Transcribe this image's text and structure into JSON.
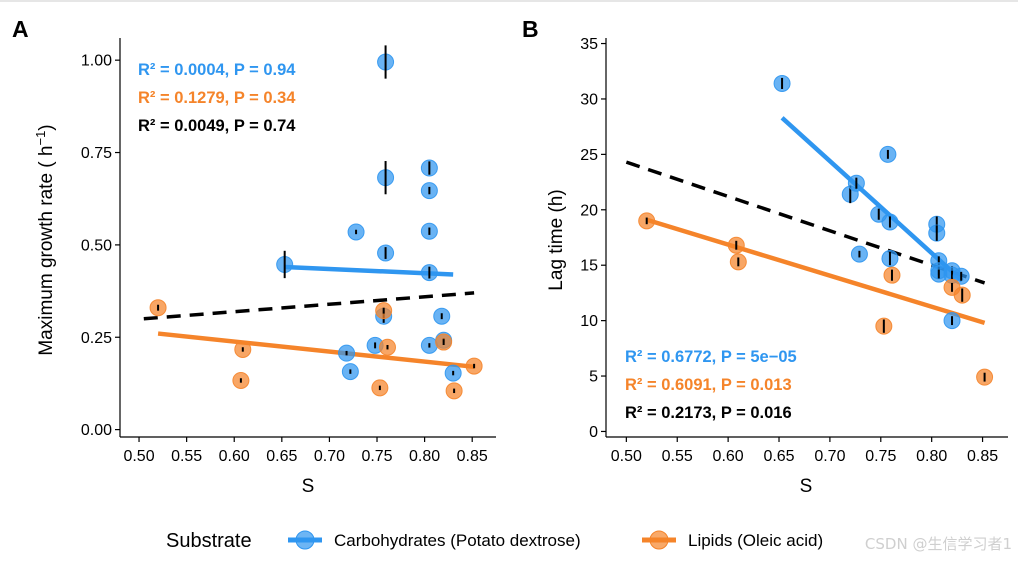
{
  "colors": {
    "carb": "#2f96f0",
    "lipid": "#f5842a",
    "overall": "#000000"
  },
  "legend": {
    "title": "Substrate",
    "items": [
      {
        "label": "Carbohydrates (Potato dextrose)",
        "series": "carb"
      },
      {
        "label": "Lipids (Oleic acid)",
        "series": "lipid"
      }
    ]
  },
  "watermark": "CSDN @生信学习者1",
  "chart_data": [
    {
      "type": "scatter",
      "panel": "A",
      "xlabel": "S",
      "ylabel_main": "Maximum growth rate ( h",
      "ylabel_sup": "−1",
      "ylabel_end": ")",
      "xlim": [
        0.48,
        0.875
      ],
      "ylim": [
        -0.02,
        1.06
      ],
      "xticks": [
        0.5,
        0.55,
        0.6,
        0.65,
        0.7,
        0.75,
        0.8,
        0.85
      ],
      "xtick_labels": [
        "0.50",
        "0.55",
        "0.60",
        "0.65",
        "0.70",
        "0.75",
        "0.80",
        "0.85"
      ],
      "yticks": [
        0,
        0.25,
        0.5,
        0.75,
        1.0
      ],
      "ytick_labels": [
        "0.00",
        "0.25",
        "0.50",
        "0.75",
        "1.00"
      ],
      "series": [
        {
          "name": "carb",
          "points": [
            {
              "x": 0.653,
              "y": 0.447,
              "err": 0.037
            },
            {
              "x": 0.718,
              "y": 0.207,
              "err": 0.006
            },
            {
              "x": 0.722,
              "y": 0.157,
              "err": 0.006
            },
            {
              "x": 0.728,
              "y": 0.535,
              "err": 0.006
            },
            {
              "x": 0.748,
              "y": 0.228,
              "err": 0.008
            },
            {
              "x": 0.757,
              "y": 0.307,
              "err": 0.018
            },
            {
              "x": 0.759,
              "y": 0.995,
              "err": 0.045
            },
            {
              "x": 0.759,
              "y": 0.682,
              "err": 0.045
            },
            {
              "x": 0.759,
              "y": 0.478,
              "err": 0.016
            },
            {
              "x": 0.805,
              "y": 0.708,
              "err": 0.018
            },
            {
              "x": 0.805,
              "y": 0.647,
              "err": 0.01
            },
            {
              "x": 0.805,
              "y": 0.537,
              "err": 0.01
            },
            {
              "x": 0.805,
              "y": 0.425,
              "err": 0.016
            },
            {
              "x": 0.805,
              "y": 0.228,
              "err": 0.006
            },
            {
              "x": 0.818,
              "y": 0.307,
              "err": 0.008
            },
            {
              "x": 0.82,
              "y": 0.242,
              "err": 0.006
            },
            {
              "x": 0.83,
              "y": 0.153,
              "err": 0.006
            }
          ]
        },
        {
          "name": "lipid",
          "points": [
            {
              "x": 0.52,
              "y": 0.33,
              "err": 0.008
            },
            {
              "x": 0.607,
              "y": 0.133,
              "err": 0.006
            },
            {
              "x": 0.609,
              "y": 0.217,
              "err": 0.006
            },
            {
              "x": 0.753,
              "y": 0.113,
              "err": 0.006
            },
            {
              "x": 0.757,
              "y": 0.322,
              "err": 0.008
            },
            {
              "x": 0.761,
              "y": 0.223,
              "err": 0.006
            },
            {
              "x": 0.82,
              "y": 0.237,
              "err": 0.008
            },
            {
              "x": 0.831,
              "y": 0.105,
              "err": 0.006
            },
            {
              "x": 0.852,
              "y": 0.172,
              "err": 0.006
            }
          ]
        }
      ],
      "fits": [
        {
          "series": "carb",
          "x": [
            0.653,
            0.83
          ],
          "y": [
            0.44,
            0.42
          ],
          "dashed": false
        },
        {
          "series": "lipid",
          "x": [
            0.52,
            0.852
          ],
          "y": [
            0.26,
            0.17
          ],
          "dashed": false
        },
        {
          "series": "overall",
          "x": [
            0.505,
            0.852
          ],
          "y": [
            0.3,
            0.37
          ],
          "dashed": true
        }
      ],
      "annotations": [
        {
          "series": "carb",
          "text": "R² = 0.0004, P = 0.94"
        },
        {
          "series": "lipid",
          "text": "R² = 0.1279, P = 0.34"
        },
        {
          "series": "overall",
          "text": "R² = 0.0049, P = 0.74"
        }
      ],
      "annotation_position": "top-left"
    },
    {
      "type": "scatter",
      "panel": "B",
      "xlabel": "S",
      "ylabel_main": "Lag time (h)",
      "xlim": [
        0.48,
        0.875
      ],
      "ylim": [
        -0.5,
        35.5
      ],
      "xticks": [
        0.5,
        0.55,
        0.6,
        0.65,
        0.7,
        0.75,
        0.8,
        0.85
      ],
      "xtick_labels": [
        "0.50",
        "0.55",
        "0.60",
        "0.65",
        "0.70",
        "0.75",
        "0.80",
        "0.85"
      ],
      "yticks": [
        0,
        5,
        10,
        15,
        20,
        25,
        30,
        35
      ],
      "ytick_labels": [
        "0",
        "5",
        "10",
        "15",
        "20",
        "25",
        "30",
        "35"
      ],
      "series": [
        {
          "name": "carb",
          "points": [
            {
              "x": 0.653,
              "y": 31.4,
              "err": 0.5
            },
            {
              "x": 0.72,
              "y": 21.4,
              "err": 0.8
            },
            {
              "x": 0.726,
              "y": 22.4,
              "err": 0.5
            },
            {
              "x": 0.729,
              "y": 16.0,
              "err": 0.3
            },
            {
              "x": 0.748,
              "y": 19.6,
              "err": 0.5
            },
            {
              "x": 0.757,
              "y": 25.0,
              "err": 0.4
            },
            {
              "x": 0.759,
              "y": 18.9,
              "err": 0.5
            },
            {
              "x": 0.759,
              "y": 15.6,
              "err": 0.6
            },
            {
              "x": 0.805,
              "y": 18.7,
              "err": 0.7
            },
            {
              "x": 0.805,
              "y": 17.9,
              "err": 0.7
            },
            {
              "x": 0.807,
              "y": 15.4,
              "err": 0.4
            },
            {
              "x": 0.807,
              "y": 14.5,
              "err": 0.4
            },
            {
              "x": 0.807,
              "y": 14.2,
              "err": 0.4
            },
            {
              "x": 0.82,
              "y": 14.5,
              "err": 0.4
            },
            {
              "x": 0.82,
              "y": 14.1,
              "err": 0.4
            },
            {
              "x": 0.82,
              "y": 10.0,
              "err": 0.4
            },
            {
              "x": 0.829,
              "y": 14.0,
              "err": 0.4
            }
          ]
        },
        {
          "name": "lipid",
          "points": [
            {
              "x": 0.52,
              "y": 19.0,
              "err": 0.3
            },
            {
              "x": 0.608,
              "y": 16.8,
              "err": 0.4
            },
            {
              "x": 0.61,
              "y": 15.3,
              "err": 0.4
            },
            {
              "x": 0.753,
              "y": 9.5,
              "err": 0.6
            },
            {
              "x": 0.761,
              "y": 14.1,
              "err": 0.5
            },
            {
              "x": 0.82,
              "y": 13.0,
              "err": 0.4
            },
            {
              "x": 0.83,
              "y": 12.3,
              "err": 0.6
            },
            {
              "x": 0.852,
              "y": 4.9,
              "err": 0.4
            }
          ]
        }
      ],
      "fits": [
        {
          "series": "carb",
          "x": [
            0.653,
            0.83
          ],
          "y": [
            28.3,
            13.6
          ],
          "dashed": false
        },
        {
          "series": "lipid",
          "x": [
            0.52,
            0.852
          ],
          "y": [
            19.1,
            9.8
          ],
          "dashed": false
        },
        {
          "series": "overall",
          "x": [
            0.5,
            0.852
          ],
          "y": [
            24.3,
            13.4
          ],
          "dashed": true
        }
      ],
      "annotations": [
        {
          "series": "carb",
          "text": "R² = 0.6772, P = 5e−05"
        },
        {
          "series": "lipid",
          "text": "R² = 0.6091, P = 0.013"
        },
        {
          "series": "overall",
          "text": "R² = 0.2173, P = 0.016"
        }
      ],
      "annotation_position": "bottom-left"
    }
  ]
}
